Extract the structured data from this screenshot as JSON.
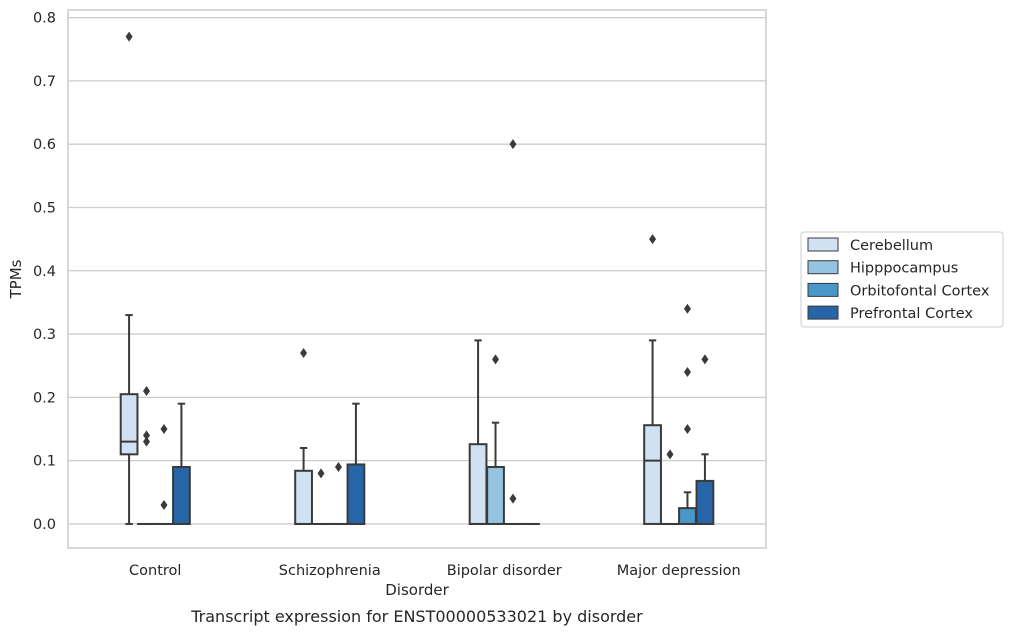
{
  "chart_data": {
    "type": "box",
    "caption": "Transcript expression for ENST00000533021 by disorder",
    "xlabel": "Disorder",
    "ylabel": "TPMs",
    "ylim": [
      -0.038,
      0.812
    ],
    "yticks": [
      0.0,
      0.1,
      0.2,
      0.3,
      0.4,
      0.5,
      0.6,
      0.7,
      0.8
    ],
    "ytick_labels": [
      "0.0",
      "0.1",
      "0.2",
      "0.3",
      "0.4",
      "0.5",
      "0.6",
      "0.7",
      "0.8"
    ],
    "grid": "horizontal",
    "legend_position": "right",
    "categories": [
      "Control",
      "Schizophrenia",
      "Bipolar disorder",
      "Major depression"
    ],
    "series": [
      {
        "name": "Cerebellum",
        "color": "#d0e1f2",
        "boxes": [
          {
            "q1": 0.11,
            "median": 0.13,
            "q3": 0.205,
            "whisker_low": 0.0,
            "whisker_high": 0.33,
            "outliers": [
              0.77
            ]
          },
          {
            "q1": 0.0,
            "median": 0.0,
            "q3": 0.084,
            "whisker_low": 0.0,
            "whisker_high": 0.12,
            "outliers": [
              0.27
            ]
          },
          {
            "q1": 0.0,
            "median": 0.0,
            "q3": 0.126,
            "whisker_low": 0.0,
            "whisker_high": 0.29,
            "outliers": []
          },
          {
            "q1": 0.0,
            "median": 0.1,
            "q3": 0.156,
            "whisker_low": 0.0,
            "whisker_high": 0.29,
            "outliers": [
              0.45
            ]
          }
        ]
      },
      {
        "name": "Hipppocampus",
        "color": "#94c4df",
        "boxes": [
          {
            "q1": 0.0,
            "median": 0.0,
            "q3": 0.0,
            "whisker_low": 0.0,
            "whisker_high": 0.0,
            "outliers": [
              0.21,
              0.14,
              0.13
            ]
          },
          {
            "q1": 0.0,
            "median": 0.0,
            "q3": 0.0,
            "whisker_low": 0.0,
            "whisker_high": 0.0,
            "outliers": [
              0.08
            ]
          },
          {
            "q1": 0.0,
            "median": 0.0,
            "q3": 0.09,
            "whisker_low": 0.0,
            "whisker_high": 0.16,
            "outliers": [
              0.26
            ]
          },
          {
            "q1": 0.0,
            "median": 0.0,
            "q3": 0.0,
            "whisker_low": 0.0,
            "whisker_high": 0.0,
            "outliers": [
              0.11
            ]
          }
        ]
      },
      {
        "name": "Orbitofontal Cortex",
        "color": "#4a98c9",
        "boxes": [
          {
            "q1": 0.0,
            "median": 0.0,
            "q3": 0.0,
            "whisker_low": 0.0,
            "whisker_high": 0.0,
            "outliers": [
              0.15,
              0.03
            ]
          },
          {
            "q1": 0.0,
            "median": 0.0,
            "q3": 0.0,
            "whisker_low": 0.0,
            "whisker_high": 0.0,
            "outliers": [
              0.09
            ]
          },
          {
            "q1": 0.0,
            "median": 0.0,
            "q3": 0.0,
            "whisker_low": 0.0,
            "whisker_high": 0.0,
            "outliers": [
              0.6,
              0.04
            ]
          },
          {
            "q1": 0.0,
            "median": 0.0,
            "q3": 0.025,
            "whisker_low": 0.0,
            "whisker_high": 0.05,
            "outliers": [
              0.34,
              0.24,
              0.15
            ]
          }
        ]
      },
      {
        "name": "Prefrontal Cortex",
        "color": "#2666a8",
        "boxes": [
          {
            "q1": 0.0,
            "median": 0.0,
            "q3": 0.09,
            "whisker_low": 0.0,
            "whisker_high": 0.19,
            "outliers": []
          },
          {
            "q1": 0.0,
            "median": 0.0,
            "q3": 0.094,
            "whisker_low": 0.0,
            "whisker_high": 0.19,
            "outliers": []
          },
          {
            "q1": 0.0,
            "median": 0.0,
            "q3": 0.0,
            "whisker_low": 0.0,
            "whisker_high": 0.0,
            "outliers": []
          },
          {
            "q1": 0.0,
            "median": 0.0,
            "q3": 0.068,
            "whisker_low": 0.0,
            "whisker_high": 0.11,
            "outliers": [
              0.26
            ]
          }
        ]
      }
    ],
    "style": {
      "grid_color": "#cccccc",
      "line_color": "#3a3a3a",
      "text_color": "#262626"
    }
  }
}
